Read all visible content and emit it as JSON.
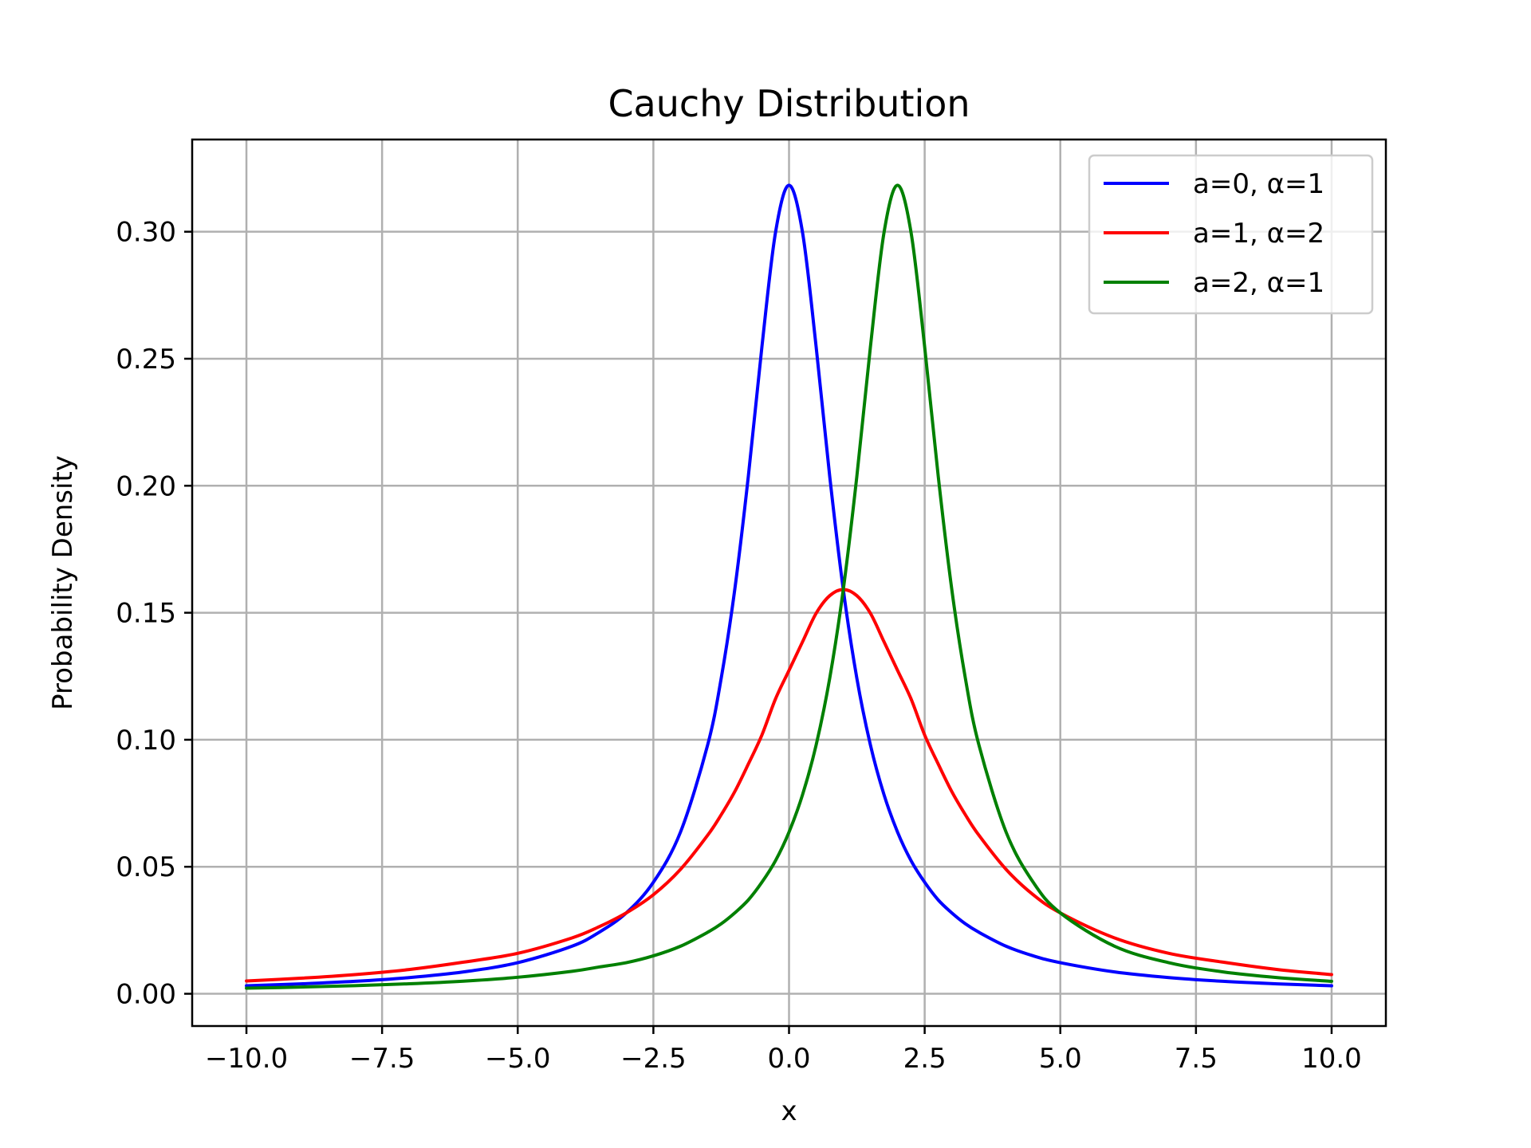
{
  "chart_data": {
    "type": "line",
    "title": "Cauchy Distribution",
    "xlabel": "x",
    "ylabel": "Probability Density",
    "xlim": [
      -11.0,
      11.0
    ],
    "ylim": [
      -0.0127,
      0.3363
    ],
    "xticks": [
      -10.0,
      -7.5,
      -5.0,
      -2.5,
      0.0,
      2.5,
      5.0,
      7.5,
      10.0
    ],
    "xtick_labels": [
      "−10.0",
      "−7.5",
      "−5.0",
      "−2.5",
      "0.0",
      "2.5",
      "5.0",
      "7.5",
      "10.0"
    ],
    "yticks": [
      0.0,
      0.05,
      0.1,
      0.15,
      0.2,
      0.25,
      0.3
    ],
    "ytick_labels": [
      "0.00",
      "0.05",
      "0.10",
      "0.15",
      "0.20",
      "0.25",
      "0.30"
    ],
    "grid": true,
    "legend_position": "top-right",
    "x": [
      -10,
      -9,
      -8,
      -7,
      -6,
      -5,
      -4,
      -3.5,
      -3,
      -2.5,
      -2,
      -1.5,
      -1.25,
      -1,
      -0.75,
      -0.5,
      -0.25,
      0,
      0.25,
      0.5,
      0.75,
      1,
      1.25,
      1.5,
      1.75,
      2,
      2.25,
      2.5,
      2.75,
      3,
      3.25,
      3.5,
      4,
      4.5,
      5,
      6,
      7,
      8,
      9,
      10
    ],
    "series": [
      {
        "name": "a=0, α=1",
        "color": "#0000ff",
        "values": [
          0.00315,
          0.0039,
          0.0049,
          0.00637,
          0.0086,
          0.01224,
          0.01872,
          0.0242,
          0.03183,
          0.0439,
          0.06366,
          0.09794,
          0.1242,
          0.15915,
          0.20372,
          0.25465,
          0.29958,
          0.31831,
          0.29958,
          0.25465,
          0.20372,
          0.15915,
          0.1242,
          0.09794,
          0.07841,
          0.06366,
          0.05238,
          0.0439,
          0.03693,
          0.03183,
          0.02754,
          0.0242,
          0.01872,
          0.01493,
          0.01224,
          0.0086,
          0.00637,
          0.0049,
          0.0039,
          0.00315
        ]
      },
      {
        "name": "a=1, α=2",
        "color": "#ff0000",
        "values": [
          0.00505,
          0.00612,
          0.00755,
          0.00955,
          0.01244,
          0.01592,
          0.02198,
          0.02639,
          0.03183,
          0.03899,
          0.04897,
          0.06239,
          0.07047,
          0.07958,
          0.09043,
          0.10186,
          0.11604,
          0.12732,
          0.1386,
          0.14979,
          0.15672,
          0.15915,
          0.15672,
          0.14979,
          0.1386,
          0.12732,
          0.11604,
          0.10186,
          0.09043,
          0.07958,
          0.07047,
          0.06239,
          0.04897,
          0.03899,
          0.03183,
          0.02198,
          0.01592,
          0.01244,
          0.00955,
          0.00755
        ]
      },
      {
        "name": "a=2, α=1",
        "color": "#008000",
        "values": [
          0.0022,
          0.00263,
          0.00318,
          0.00393,
          0.00497,
          0.0065,
          0.00884,
          0.01055,
          0.01224,
          0.01493,
          0.01872,
          0.0242,
          0.02754,
          0.03183,
          0.03693,
          0.0439,
          0.05238,
          0.06366,
          0.07841,
          0.09794,
          0.1242,
          0.15915,
          0.20372,
          0.25465,
          0.29958,
          0.31831,
          0.29958,
          0.25465,
          0.20372,
          0.15915,
          0.1242,
          0.09794,
          0.06366,
          0.0439,
          0.03183,
          0.01872,
          0.01224,
          0.0086,
          0.00637,
          0.0049
        ]
      }
    ]
  }
}
